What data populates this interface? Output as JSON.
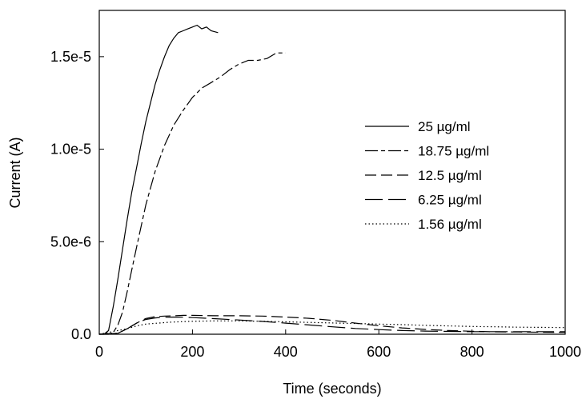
{
  "chart_data": {
    "type": "line",
    "title": "",
    "xlabel": "Time (seconds)",
    "ylabel": "Current (A)",
    "xlim": [
      0,
      1000
    ],
    "ylim": [
      0,
      1.75e-05
    ],
    "xticks": [
      {
        "value": 0,
        "label": "0"
      },
      {
        "value": 200,
        "label": "200"
      },
      {
        "value": 400,
        "label": "400"
      },
      {
        "value": 600,
        "label": "600"
      },
      {
        "value": 800,
        "label": "800"
      },
      {
        "value": 1000,
        "label": "1000"
      }
    ],
    "yticks": [
      {
        "value": 0,
        "label": "0.0"
      },
      {
        "value": 5e-06,
        "label": "5.0e-6"
      },
      {
        "value": 1e-05,
        "label": "1.0e-5"
      },
      {
        "value": 1.5e-05,
        "label": "1.5e-5"
      }
    ],
    "grid": false,
    "legend_position": "right",
    "series": [
      {
        "name": "25 µg/ml",
        "dash": "solid",
        "x": [
          0,
          10,
          20,
          30,
          40,
          50,
          60,
          70,
          80,
          90,
          100,
          110,
          120,
          130,
          140,
          150,
          160,
          170,
          180,
          190,
          200,
          210,
          220,
          230,
          240,
          255
        ],
        "y": [
          0,
          0,
          2e-07,
          1.5e-06,
          3e-06,
          4.6e-06,
          6.2e-06,
          7.7e-06,
          9e-06,
          1.03e-05,
          1.15e-05,
          1.25e-05,
          1.35e-05,
          1.43e-05,
          1.5e-05,
          1.56e-05,
          1.6e-05,
          1.63e-05,
          1.64e-05,
          1.65e-05,
          1.66e-05,
          1.67e-05,
          1.65e-05,
          1.66e-05,
          1.64e-05,
          1.63e-05
        ]
      },
      {
        "name": "18.75 µg/ml",
        "dash": "long-short",
        "x": [
          0,
          20,
          30,
          40,
          50,
          60,
          70,
          80,
          100,
          120,
          140,
          160,
          180,
          200,
          220,
          240,
          260,
          280,
          300,
          320,
          340,
          360,
          380,
          400
        ],
        "y": [
          0,
          0,
          1e-07,
          5e-07,
          1.2e-06,
          2.3e-06,
          3.5e-06,
          4.7e-06,
          7e-06,
          8.8e-06,
          1.02e-05,
          1.13e-05,
          1.21e-05,
          1.28e-05,
          1.33e-05,
          1.36e-05,
          1.39e-05,
          1.43e-05,
          1.46e-05,
          1.48e-05,
          1.48e-05,
          1.49e-05,
          1.52e-05,
          1.52e-05
        ]
      },
      {
        "name": "12.5 µg/ml",
        "dash": "medium",
        "x": [
          0,
          40,
          60,
          80,
          100,
          120,
          140,
          160,
          180,
          200,
          250,
          300,
          350,
          400,
          450,
          500,
          550,
          600,
          650,
          700,
          750,
          800,
          850,
          900,
          950,
          1000
        ],
        "y": [
          0,
          5e-08,
          3e-07,
          6e-07,
          8.5e-07,
          9.5e-07,
          9.8e-07,
          1e-06,
          1.02e-06,
          1.02e-06,
          1e-06,
          1e-06,
          9.8e-07,
          9.3e-07,
          8.6e-07,
          7.5e-07,
          6e-07,
          4.6e-07,
          3.4e-07,
          2.6e-07,
          2e-07,
          1.6e-07,
          1.3e-07,
          1.2e-07,
          1.1e-07,
          1e-07
        ]
      },
      {
        "name": "6.25 µg/ml",
        "dash": "long",
        "x": [
          0,
          40,
          60,
          80,
          100,
          120,
          140,
          160,
          180,
          200,
          250,
          300,
          350,
          400,
          450,
          500,
          550,
          600,
          650,
          700,
          750,
          800,
          850,
          900,
          950,
          1000
        ],
        "y": [
          0,
          5e-08,
          3e-07,
          6e-07,
          8e-07,
          8.8e-07,
          9.2e-07,
          9.3e-07,
          9.2e-07,
          9e-07,
          8.4e-07,
          7.7e-07,
          6.9e-07,
          6e-07,
          5e-07,
          4e-07,
          3.1e-07,
          2.5e-07,
          2e-07,
          1.7e-07,
          1.5e-07,
          1.4e-07,
          1.4e-07,
          1.4e-07,
          1.4e-07,
          1.4e-07
        ]
      },
      {
        "name": "1.56 µg/ml",
        "dash": "dotted",
        "x": [
          0,
          20,
          40,
          60,
          80,
          100,
          150,
          200,
          250,
          300,
          350,
          400,
          450,
          500,
          550,
          600,
          650,
          700,
          750,
          800,
          850,
          900,
          950,
          1000
        ],
        "y": [
          0,
          1e-07,
          2e-07,
          3e-07,
          4.5e-07,
          5.5e-07,
          6.5e-07,
          7e-07,
          7.2e-07,
          7.2e-07,
          7e-07,
          6.7e-07,
          6.4e-07,
          6.1e-07,
          5.8e-07,
          5.5e-07,
          5.2e-07,
          4.8e-07,
          4.5e-07,
          4.2e-07,
          4e-07,
          3.8e-07,
          3.7e-07,
          3.6e-07
        ]
      }
    ]
  }
}
